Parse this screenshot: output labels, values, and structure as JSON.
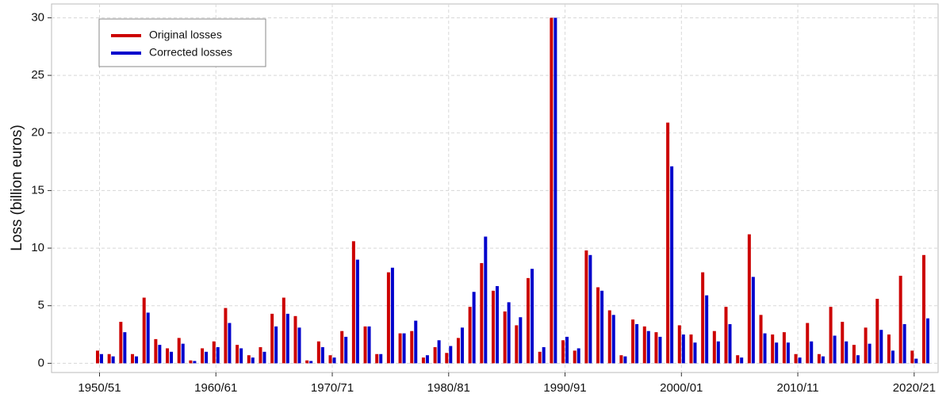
{
  "chart_data": {
    "type": "bar",
    "ylabel": "Loss (billion euros)",
    "categories": [
      "1950/51",
      null,
      null,
      null,
      null,
      null,
      null,
      null,
      null,
      null,
      "1960/61",
      null,
      null,
      null,
      null,
      null,
      null,
      null,
      null,
      null,
      "1970/71",
      null,
      null,
      null,
      null,
      null,
      null,
      null,
      null,
      null,
      "1980/81",
      null,
      null,
      null,
      null,
      null,
      null,
      null,
      null,
      null,
      "1990/91",
      null,
      null,
      null,
      null,
      null,
      null,
      null,
      null,
      null,
      "2000/01",
      null,
      null,
      null,
      null,
      null,
      null,
      null,
      null,
      null,
      "2010/11",
      null,
      null,
      null,
      null,
      null,
      null,
      null,
      null,
      null,
      "2020/21",
      null
    ],
    "series": [
      {
        "name": "Original losses",
        "color": "#cc0000",
        "values": [
          1.1,
          0.8,
          3.6,
          0.8,
          5.7,
          2.1,
          1.3,
          2.2,
          0.25,
          1.3,
          1.9,
          4.8,
          1.6,
          0.7,
          1.4,
          4.3,
          5.7,
          4.1,
          0.25,
          1.9,
          0.7,
          2.8,
          10.6,
          3.2,
          0.8,
          7.9,
          2.6,
          2.8,
          0.5,
          1.4,
          0.9,
          2.2,
          4.9,
          8.7,
          6.3,
          4.5,
          3.3,
          7.4,
          1.0,
          30,
          2.0,
          1.1,
          9.8,
          6.6,
          4.6,
          0.7,
          3.8,
          3.2,
          2.7,
          20.9,
          3.3,
          2.5,
          7.9,
          2.8,
          4.9,
          0.7,
          11.2,
          4.2,
          2.5,
          2.7,
          0.8,
          3.5,
          0.8,
          4.9,
          3.6,
          1.6,
          3.1,
          5.6,
          2.5,
          7.6,
          1.1,
          9.4
        ]
      },
      {
        "name": "Corrected losses",
        "color": "#0000cc",
        "values": [
          0.8,
          0.6,
          2.7,
          0.6,
          4.4,
          1.6,
          1.0,
          1.7,
          0.2,
          1.0,
          1.4,
          3.5,
          1.3,
          0.5,
          1.0,
          3.2,
          4.3,
          3.1,
          0.2,
          1.4,
          0.5,
          2.3,
          9.0,
          3.2,
          0.8,
          8.3,
          2.6,
          3.7,
          0.7,
          2.0,
          1.5,
          3.1,
          6.2,
          11.0,
          6.7,
          5.3,
          4.0,
          8.2,
          1.4,
          30,
          2.3,
          1.3,
          9.4,
          6.3,
          4.2,
          0.6,
          3.4,
          2.8,
          2.3,
          17.1,
          2.5,
          1.8,
          5.9,
          1.9,
          3.4,
          0.5,
          7.5,
          2.6,
          1.8,
          1.8,
          0.5,
          1.9,
          0.6,
          2.4,
          1.9,
          0.7,
          1.7,
          2.9,
          1.1,
          3.4,
          0.4,
          3.9
        ]
      }
    ],
    "ylim": [
      -0.8,
      31.2
    ],
    "yticks": [
      0,
      5,
      10,
      15,
      20,
      25,
      30
    ],
    "grid": true,
    "legend": "upper left"
  }
}
